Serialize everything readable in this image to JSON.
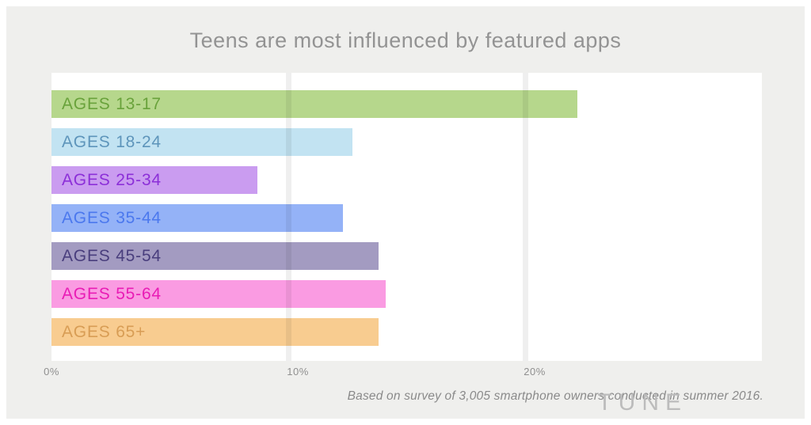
{
  "page": {
    "title": "Teens are most influenced by featured apps",
    "footnote": "Based on survey of 3,005 smartphone owners conducted in summer 2016.",
    "brand": "TUNE"
  },
  "colors": {
    "page_bg": "#ffffff",
    "card_bg": "#efefed",
    "plot_bg": "#ffffff",
    "gridline": "#ededeb",
    "title_text": "#939393",
    "axis_text": "#8f8f8f",
    "footnote_text": "#8a8a8a",
    "brand_text": "#bcbcbc"
  },
  "chart_data": {
    "type": "bar",
    "orientation": "horizontal",
    "title": "Teens are most influenced by featured apps",
    "categories": [
      "AGES 13-17",
      "AGES 18-24",
      "AGES 25-34",
      "AGES 35-44",
      "AGES 45-54",
      "AGES 55-64",
      "AGES 65+"
    ],
    "values": [
      22.2,
      12.7,
      8.7,
      12.3,
      13.8,
      14.1,
      13.8
    ],
    "unit": "%",
    "xlabel": "",
    "ylabel": "",
    "xlim": [
      0,
      30
    ],
    "x_ticks": [
      {
        "value": 0,
        "label": "0%"
      },
      {
        "value": 10,
        "label": "10%"
      },
      {
        "value": 20,
        "label": "20%"
      }
    ],
    "grid": "vertical",
    "legend": "none",
    "bar_colors": [
      "#b6d78c",
      "#c2e3f2",
      "#ca9cf0",
      "#94b2f7",
      "#a39bc1",
      "#fa9be2",
      "#f8cc90"
    ],
    "label_colors": [
      "#69a23b",
      "#5e95bb",
      "#8c2fd8",
      "#4b78ee",
      "#493e7d",
      "#e91cb5",
      "#d89d55"
    ]
  }
}
